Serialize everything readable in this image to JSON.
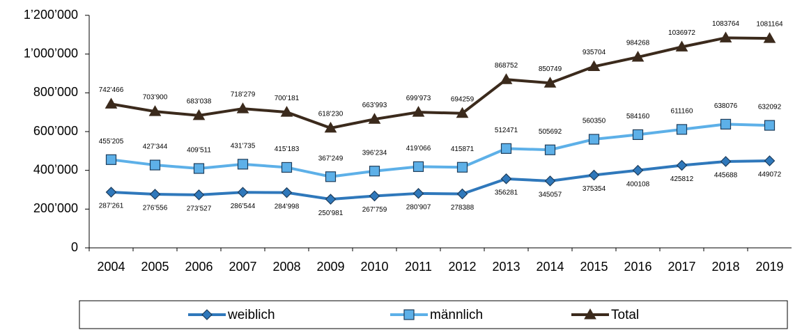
{
  "chart_data": {
    "type": "line",
    "categories": [
      "2004",
      "2005",
      "2006",
      "2007",
      "2008",
      "2009",
      "2010",
      "2011",
      "2012",
      "2013",
      "2014",
      "2015",
      "2016",
      "2017",
      "2018",
      "2019"
    ],
    "series": [
      {
        "name": "weiblich",
        "color": "#2f78bb",
        "marker": "diamond",
        "values": [
          287261,
          276556,
          273527,
          286544,
          284998,
          250981,
          267759,
          280907,
          278388,
          356281,
          345057,
          375354,
          400108,
          425812,
          445688,
          449072
        ],
        "value_labels": [
          "287’261",
          "276’556",
          "273’527",
          "286’544",
          "284’998",
          "250’981",
          "267’759",
          "280’907",
          "278388",
          "356281",
          "345057",
          "375354",
          "400108",
          "425812",
          "445688",
          "449072"
        ]
      },
      {
        "name": "männlich",
        "color": "#5db0e8",
        "marker": "square",
        "values": [
          455205,
          427344,
          409511,
          431735,
          415183,
          367249,
          396234,
          419066,
          415871,
          512471,
          505692,
          560350,
          584160,
          611160,
          638076,
          632092
        ],
        "value_labels": [
          "455’205",
          "427’344",
          "409’511",
          "431’735",
          "415’183",
          "367’249",
          "396’234",
          "419’066",
          "415871",
          "512471",
          "505692",
          "560350",
          "584160",
          "611160",
          "638076",
          "632092"
        ]
      },
      {
        "name": "Total",
        "color": "#3b2a1c",
        "marker": "triangle",
        "values": [
          742466,
          703900,
          683038,
          718279,
          700181,
          618230,
          663993,
          699973,
          694259,
          868752,
          850749,
          935704,
          984268,
          1036972,
          1083764,
          1081164
        ],
        "value_labels": [
          "742’466",
          "703’900",
          "683’038",
          "718’279",
          "700’181",
          "618’230",
          "663’993",
          "699’973",
          "694259",
          "868752",
          "850749",
          "935704",
          "984268",
          "1036972",
          "1083764",
          "1081164"
        ]
      }
    ],
    "ylim": [
      0,
      1200000
    ],
    "yticks": [
      0,
      {
        "value": 200000,
        "label": "200’000"
      },
      {
        "value": 400000,
        "label": "400’000"
      },
      {
        "value": 600000,
        "label": "600’000"
      },
      {
        "value": 800000,
        "label": "800’000"
      },
      {
        "value": 1000000,
        "label": "1’000’000"
      },
      {
        "value": 1200000,
        "label": "1’200’000"
      }
    ],
    "legend": "bottom"
  }
}
